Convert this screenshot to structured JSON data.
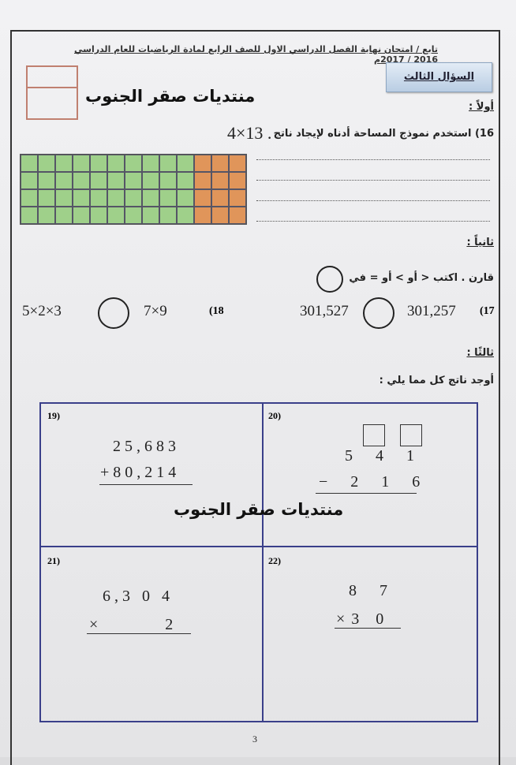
{
  "header": "تابع / امتحان نهاية الفصل الدراسي الاول للصف الرابع  لمادة الرياضيات  للعام الدراسي 2016 / 2017م",
  "question_title": "السؤال الثالث",
  "watermark": "منتديات صقر الجنوب",
  "section1": {
    "label": "أولاً :",
    "q16_text": "16) استخدم نموذج المساحة أدناه لإيجاد ناتج",
    "q16_expr": "4×13 ."
  },
  "area_model": {
    "rows": 4,
    "green_columns": 10,
    "orange_columns": 3,
    "green": "#9fd08a",
    "orange": "#e0955a"
  },
  "section2": {
    "label": "ثانياً :",
    "instruction": "قارن . اكتب <  أو > أو = في",
    "q17": {
      "num": "(17",
      "left": "301,257",
      "right": "301,527"
    },
    "q18": {
      "num": "(18",
      "left": "7×9",
      "right": "5×2×3"
    }
  },
  "section3": {
    "label": "ثالثًا :",
    "instruction": "أوجد ناتج كل مما يلي :",
    "q19": {
      "num": "19)",
      "line1": "25,683",
      "line2": "+80,214"
    },
    "q20": {
      "num": "20)",
      "line1": "5 4 1",
      "line2": "− 2 1 6"
    },
    "q21": {
      "num": "21)",
      "line1": "6,3 0 4",
      "line2": "×        2"
    },
    "q22": {
      "num": "22)",
      "line1": "8 7",
      "line2": "×3 0"
    }
  },
  "page_number": "3"
}
